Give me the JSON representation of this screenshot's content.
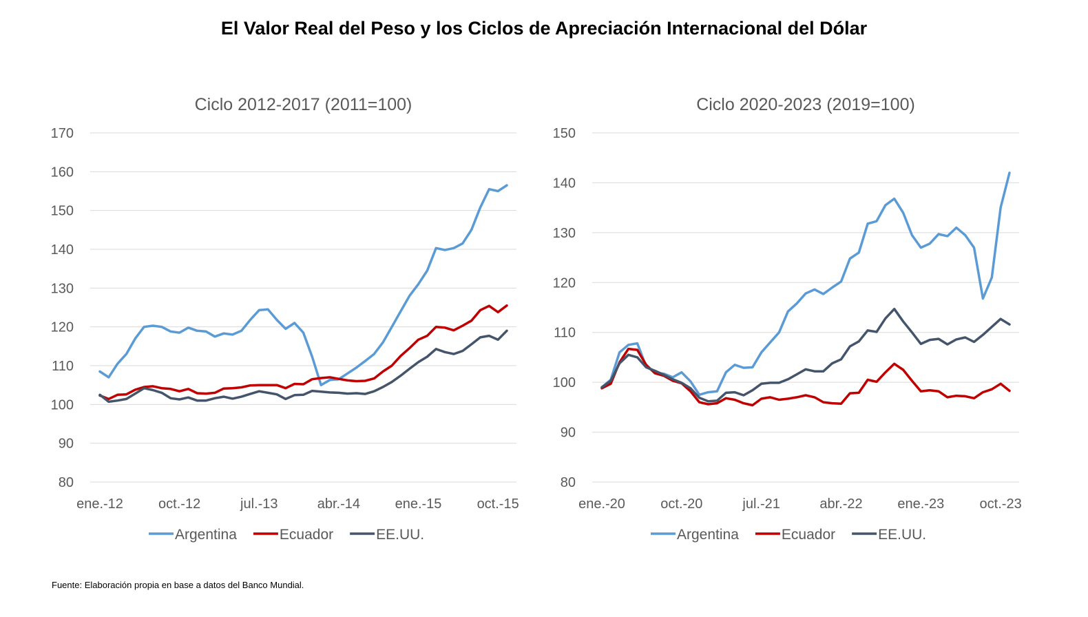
{
  "page": {
    "title": "El Valor Real del Peso y los Ciclos de Apreciación Internacional del Dólar",
    "source": "Fuente: Elaboración propia en base a datos del Banco Mundial."
  },
  "colors": {
    "Argentina": "#5b9bd5",
    "Ecuador": "#c00000",
    "EE.UU.": "#44546a",
    "grid": "#d9d9d9",
    "text": "#595959"
  },
  "chart_data": [
    {
      "type": "line",
      "title": "Ciclo 2012-2017 (2011=100)",
      "ylim": [
        80,
        170
      ],
      "yticks": [
        80,
        90,
        100,
        110,
        120,
        130,
        140,
        150,
        160,
        170
      ],
      "x_start": "2012-01",
      "x_tick_labels": [
        {
          "index": 0,
          "label": "ene.-12"
        },
        {
          "index": 9,
          "label": "oct.-12"
        },
        {
          "index": 18,
          "label": "jul.-13"
        },
        {
          "index": 27,
          "label": "abr.-14"
        },
        {
          "index": 36,
          "label": "ene.-15"
        },
        {
          "index": 45,
          "label": "oct.-15"
        }
      ],
      "legend": "bottom",
      "grid": true,
      "series": [
        {
          "name": "Argentina",
          "values": [
            108.5,
            107,
            110.5,
            113,
            117,
            120,
            120.3,
            120,
            118.8,
            118.5,
            119.8,
            119,
            118.8,
            117.5,
            118.3,
            118,
            119,
            121.8,
            124.3,
            124.5,
            121.8,
            119.5,
            121,
            118.5,
            112.3,
            105,
            106.3,
            106.5,
            108,
            109.5,
            111.2,
            113,
            116,
            120,
            124,
            128,
            131,
            134.5,
            140.3,
            139.8,
            140.3,
            141.5,
            145,
            150.8,
            155.5,
            155,
            156.5
          ]
        },
        {
          "name": "Ecuador",
          "values": [
            102.3,
            101.4,
            102.5,
            102.6,
            103.8,
            104.5,
            104.7,
            104.2,
            104,
            103.4,
            104,
            102.9,
            102.8,
            103,
            104.1,
            104.2,
            104.4,
            104.9,
            105,
            105,
            105,
            104.2,
            105.3,
            105.2,
            106.5,
            106.8,
            107,
            106.6,
            106.2,
            106,
            106.1,
            106.7,
            108.5,
            110,
            112.5,
            114.5,
            116.7,
            117.7,
            120,
            119.8,
            119.1,
            120.3,
            121.6,
            124.3,
            125.4,
            123.8,
            125.5
          ]
        },
        {
          "name": "EE.UU.",
          "values": [
            102.5,
            100.7,
            101,
            101.4,
            102.8,
            104.2,
            103.7,
            103,
            101.6,
            101.3,
            101.8,
            101,
            101,
            101.6,
            102,
            101.5,
            102,
            102.7,
            103.4,
            103,
            102.6,
            101.4,
            102.4,
            102.5,
            103.5,
            103.3,
            103.1,
            103,
            102.8,
            102.9,
            102.7,
            103.4,
            104.5,
            105.8,
            107.4,
            109.2,
            110.9,
            112.3,
            114.3,
            113.5,
            113,
            113.8,
            115.5,
            117.3,
            117.7,
            116.7,
            119
          ]
        }
      ]
    },
    {
      "type": "line",
      "title": "Ciclo 2020-2023 (2019=100)",
      "ylim": [
        80,
        150
      ],
      "yticks": [
        80,
        90,
        100,
        110,
        120,
        130,
        140,
        150
      ],
      "x_start": "2020-01",
      "x_tick_labels": [
        {
          "index": 0,
          "label": "ene.-20"
        },
        {
          "index": 9,
          "label": "oct.-20"
        },
        {
          "index": 18,
          "label": "jul.-21"
        },
        {
          "index": 27,
          "label": "abr.-22"
        },
        {
          "index": 36,
          "label": "ene.-23"
        },
        {
          "index": 45,
          "label": "oct.-23"
        }
      ],
      "legend": "bottom",
      "grid": true,
      "series": [
        {
          "name": "Argentina",
          "values": [
            99,
            100.5,
            106,
            107.5,
            107.8,
            103.2,
            102,
            101.7,
            101,
            102,
            100.2,
            97.5,
            98,
            98.2,
            102,
            103.5,
            102.9,
            103,
            106,
            108,
            110,
            114.2,
            115.8,
            117.8,
            118.6,
            117.7,
            119,
            120.2,
            124.8,
            126,
            131.8,
            132.3,
            135.5,
            136.8,
            134,
            129.5,
            127,
            127.8,
            129.7,
            129.3,
            131,
            129.5,
            127,
            116.8,
            121,
            135,
            142
          ]
        },
        {
          "name": "Ecuador",
          "values": [
            98.8,
            99.7,
            104,
            106.7,
            106.5,
            103.5,
            101.8,
            101.3,
            100.3,
            99.8,
            98.2,
            96,
            95.6,
            95.8,
            96.8,
            96.5,
            95.8,
            95.4,
            96.7,
            97,
            96.5,
            96.7,
            97,
            97.4,
            97,
            96,
            95.8,
            95.7,
            97.8,
            97.9,
            100.5,
            100.1,
            102,
            103.7,
            102.5,
            100.3,
            98.2,
            98.4,
            98.2,
            97,
            97.3,
            97.2,
            96.8,
            98,
            98.6,
            99.7,
            98.3
          ]
        },
        {
          "name": "EE.UU.",
          "values": [
            99,
            100.3,
            103.8,
            105.5,
            105,
            103,
            102.3,
            101.5,
            100.6,
            99.9,
            98.8,
            96.9,
            96.2,
            96.3,
            97.9,
            98,
            97.4,
            98.4,
            99.7,
            99.9,
            99.9,
            100.6,
            101.6,
            102.6,
            102.2,
            102.2,
            103.8,
            104.6,
            107.2,
            108.2,
            110.4,
            110.1,
            112.8,
            114.7,
            112.2,
            110,
            107.7,
            108.5,
            108.7,
            107.6,
            108.6,
            109,
            108.1,
            109.5,
            111.1,
            112.7,
            111.6
          ]
        }
      ]
    }
  ]
}
